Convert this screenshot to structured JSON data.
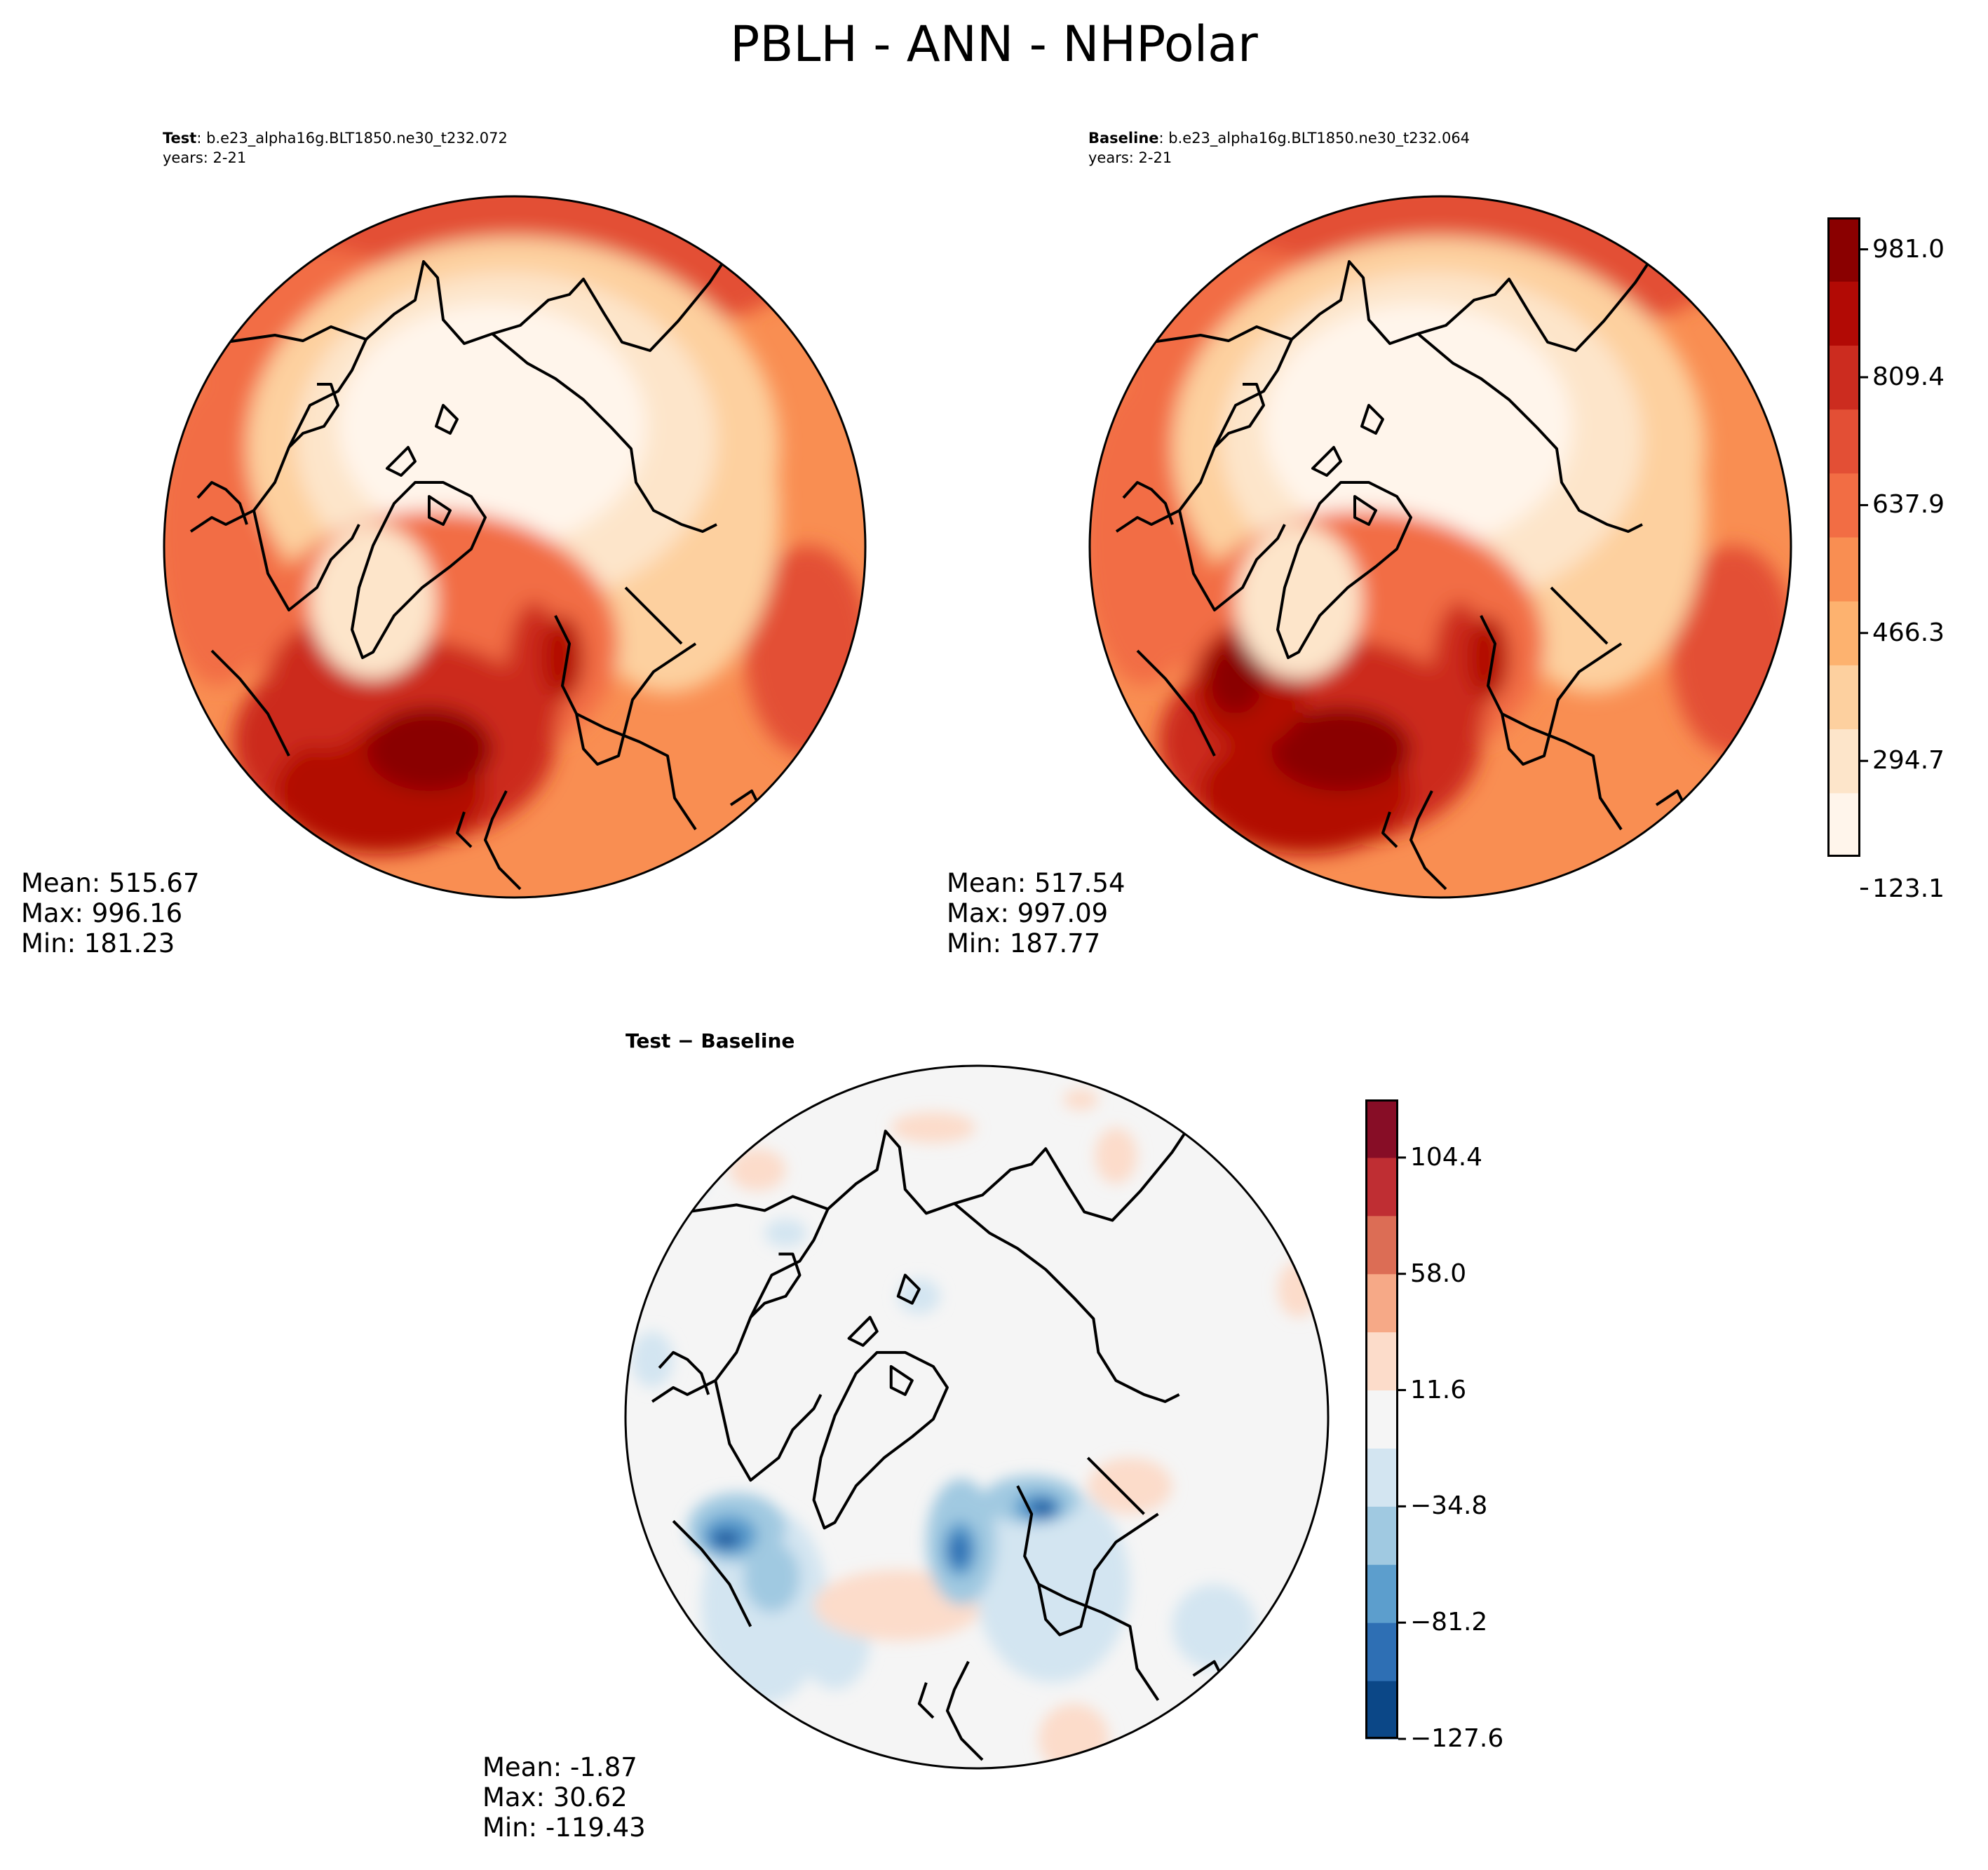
{
  "figure": {
    "title": "PBLH - ANN - NHPolar"
  },
  "panels": {
    "test": {
      "label": "Test",
      "case": ": b.e23_alpha16g.BLT1850.ne30_t232.072",
      "years": "years: 2-21",
      "stats": {
        "mean": "Mean: 515.67",
        "max": "Max: 996.16",
        "min": "Min: 181.23"
      }
    },
    "baseline": {
      "label": "Baseline",
      "case": ": b.e23_alpha16g.BLT1850.ne30_t232.064",
      "years": "years: 2-21",
      "stats": {
        "mean": "Mean: 517.54",
        "max": "Max: 997.09",
        "min": "Min: 187.77"
      }
    },
    "diff": {
      "title": "Test − Baseline",
      "stats": {
        "mean": "Mean: -1.87",
        "max": "Max: 30.62",
        "min": "Min: -119.43"
      }
    }
  },
  "colorbars": {
    "field": {
      "ticks": [
        "981.0",
        "809.4",
        "637.9",
        "466.3",
        "294.7",
        "123.1"
      ],
      "colors": [
        "#fff5eb",
        "#fde5ca",
        "#fdd09f",
        "#fdb26f",
        "#f98e52",
        "#f26d44",
        "#e34f35",
        "#cc2c1f",
        "#b20a05",
        "#8a0000"
      ]
    },
    "diff": {
      "ticks": [
        "104.4",
        "58.0",
        "11.6",
        "−34.8",
        "−81.2",
        "−127.6"
      ],
      "colors": [
        "#0b4787",
        "#2e6fb4",
        "#5c9ecd",
        "#a0c9e1",
        "#d3e5f1",
        "#f5f5f5",
        "#fcdcca",
        "#f6a987",
        "#dc6d55",
        "#bf2e33",
        "#870d26"
      ]
    }
  }
}
